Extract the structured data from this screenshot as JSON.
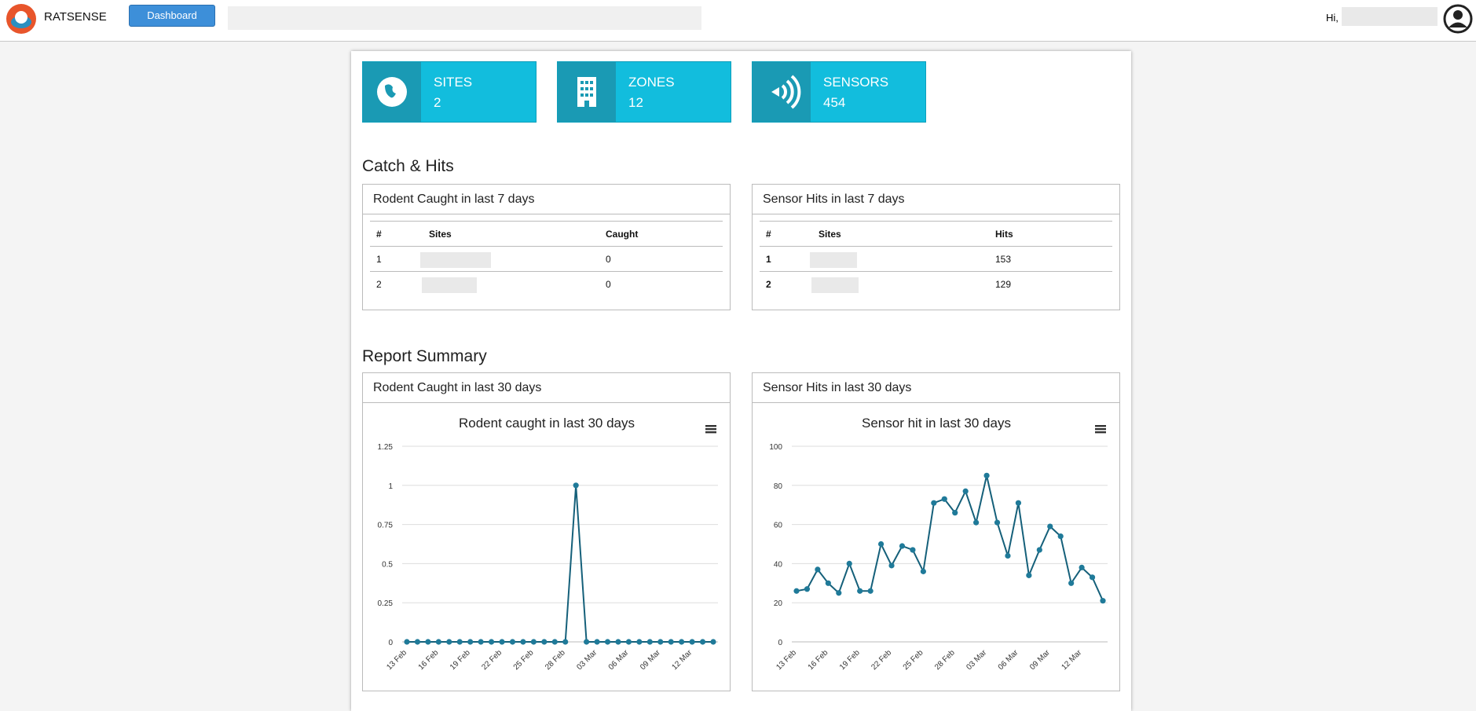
{
  "nav": {
    "brand": "RATSENSE",
    "button": "Dashboard",
    "greeting": "Hi,"
  },
  "cards": [
    {
      "label": "SITES",
      "value": 2
    },
    {
      "label": "ZONES",
      "value": 12
    },
    {
      "label": "SENSORS",
      "value": 454
    }
  ],
  "sections": [
    "Catch & Hits",
    "Report Summary"
  ],
  "tables": [
    {
      "title": "Rodent Caught in last 7 days",
      "headers": [
        "#",
        "Sites",
        "Caught"
      ],
      "rows": [
        [
          "1",
          "0"
        ],
        [
          "2",
          "0"
        ]
      ]
    },
    {
      "title": "Sensor Hits in last 7 days",
      "headers": [
        "#",
        "Sites",
        "Hits"
      ],
      "rows": [
        [
          "1",
          "153"
        ],
        [
          "2",
          "129"
        ]
      ]
    }
  ],
  "panels": [
    "Rodent Caught in last 30 days",
    "Sensor Hits in last 30 days"
  ],
  "charts": [
    {
      "type": "line",
      "title": "Rodent caught in last 30 days",
      "color": "#15607a",
      "marker_color": "#1f7a99",
      "categories": [
        "13 Feb",
        null,
        null,
        "16 Feb",
        null,
        null,
        "19 Feb",
        null,
        null,
        "22 Feb",
        null,
        null,
        "25 Feb",
        null,
        null,
        "28 Feb",
        null,
        null,
        "03 Mar",
        null,
        null,
        "06 Mar",
        null,
        null,
        "09 Mar",
        null,
        null,
        "12 Mar",
        null,
        null
      ],
      "values": [
        0,
        0,
        0,
        0,
        0,
        0,
        0,
        0,
        0,
        0,
        0,
        0,
        0,
        0,
        0,
        0,
        1,
        0,
        0,
        0,
        0,
        0,
        0,
        0,
        0,
        0,
        0,
        0,
        0,
        0
      ],
      "ylim": [
        0,
        1.25
      ],
      "yticks": [
        0,
        0.25,
        0.5,
        0.75,
        1,
        1.25
      ],
      "grid": true
    },
    {
      "type": "line",
      "title": "Sensor hit in last 30 days",
      "color": "#15607a",
      "marker_color": "#1f7a99",
      "categories": [
        "13 Feb",
        null,
        null,
        "16 Feb",
        null,
        null,
        "19 Feb",
        null,
        null,
        "22 Feb",
        null,
        null,
        "25 Feb",
        null,
        null,
        "28 Feb",
        null,
        null,
        "03 Mar",
        null,
        null,
        "06 Mar",
        null,
        null,
        "09 Mar",
        null,
        null,
        "12 Mar",
        null,
        null
      ],
      "values": [
        26,
        27,
        37,
        30,
        25,
        40,
        26,
        26,
        50,
        39,
        49,
        47,
        36,
        71,
        73,
        66,
        77,
        61,
        85,
        61,
        44,
        71,
        34,
        47,
        59,
        54,
        30,
        38,
        33,
        21
      ],
      "ylim": [
        0,
        100
      ],
      "yticks": [
        0,
        20,
        40,
        60,
        80,
        100
      ],
      "grid": true
    }
  ]
}
